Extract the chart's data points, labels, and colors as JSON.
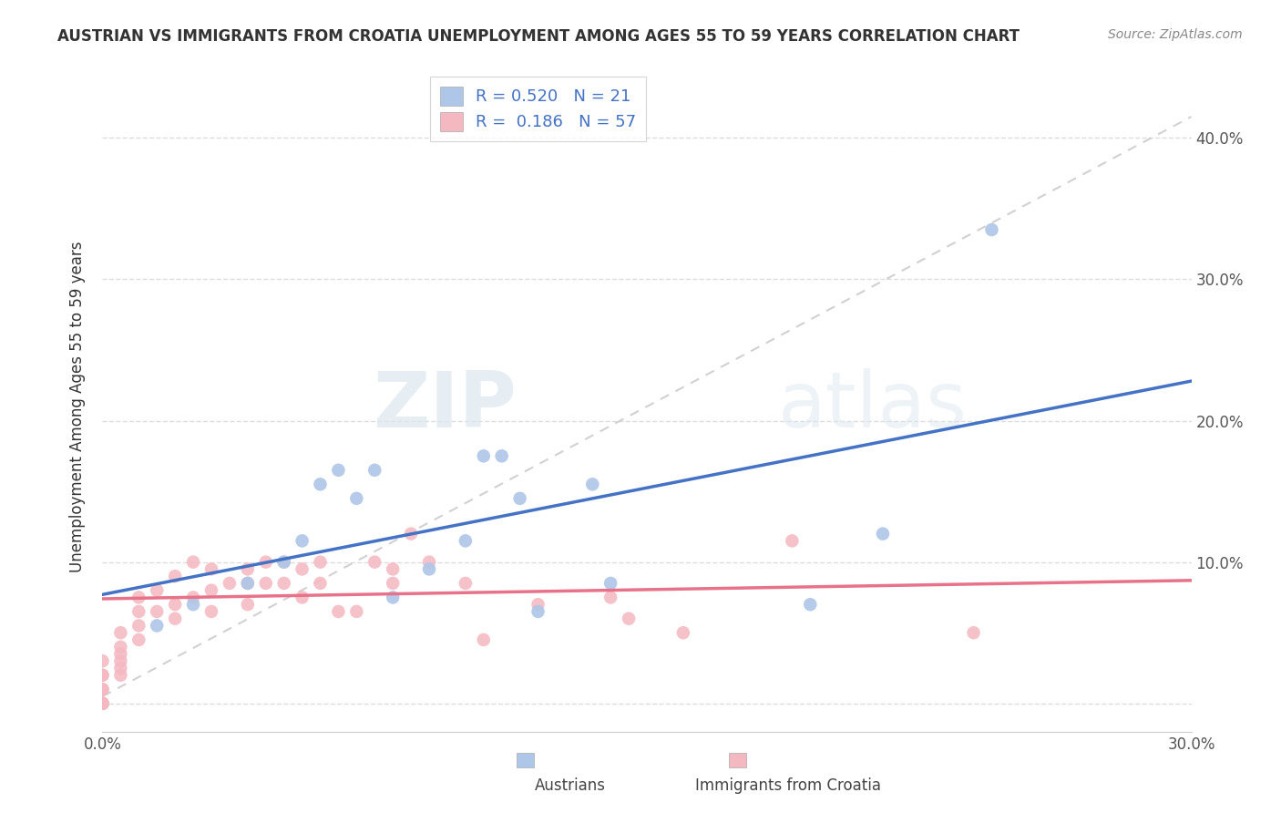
{
  "title": "AUSTRIAN VS IMMIGRANTS FROM CROATIA UNEMPLOYMENT AMONG AGES 55 TO 59 YEARS CORRELATION CHART",
  "source": "Source: ZipAtlas.com",
  "ylabel": "Unemployment Among Ages 55 to 59 years",
  "xlim": [
    0.0,
    0.3
  ],
  "ylim": [
    -0.02,
    0.44
  ],
  "R_austrians": 0.52,
  "N_austrians": 21,
  "R_croatia": 0.186,
  "N_croatia": 57,
  "color_austrians": "#aec6e8",
  "color_croatia": "#f4b8c1",
  "color_trend_austrians": "#4472c4",
  "color_trend_croatia": "#e8728a",
  "color_trend_dashed": "#cccccc",
  "background_color": "#ffffff",
  "grid_color": "#dddddd",
  "austrians_x": [
    0.015,
    0.025,
    0.04,
    0.05,
    0.055,
    0.06,
    0.065,
    0.07,
    0.075,
    0.08,
    0.09,
    0.1,
    0.105,
    0.11,
    0.115,
    0.12,
    0.135,
    0.14,
    0.195,
    0.215,
    0.245
  ],
  "austrians_y": [
    0.055,
    0.07,
    0.085,
    0.1,
    0.115,
    0.155,
    0.165,
    0.145,
    0.165,
    0.075,
    0.095,
    0.115,
    0.175,
    0.175,
    0.145,
    0.065,
    0.155,
    0.085,
    0.07,
    0.12,
    0.335
  ],
  "croatia_x": [
    0.0,
    0.0,
    0.0,
    0.0,
    0.0,
    0.0,
    0.0,
    0.0,
    0.0,
    0.0,
    0.005,
    0.005,
    0.005,
    0.005,
    0.005,
    0.005,
    0.01,
    0.01,
    0.01,
    0.01,
    0.015,
    0.015,
    0.02,
    0.02,
    0.02,
    0.025,
    0.025,
    0.03,
    0.03,
    0.03,
    0.035,
    0.04,
    0.04,
    0.04,
    0.045,
    0.045,
    0.05,
    0.05,
    0.055,
    0.055,
    0.06,
    0.06,
    0.065,
    0.07,
    0.075,
    0.08,
    0.08,
    0.085,
    0.09,
    0.1,
    0.105,
    0.12,
    0.14,
    0.145,
    0.16,
    0.19,
    0.24
  ],
  "croatia_y": [
    0.0,
    0.0,
    0.0,
    0.0,
    0.0,
    0.01,
    0.01,
    0.02,
    0.02,
    0.03,
    0.02,
    0.025,
    0.03,
    0.035,
    0.04,
    0.05,
    0.045,
    0.055,
    0.065,
    0.075,
    0.065,
    0.08,
    0.06,
    0.07,
    0.09,
    0.075,
    0.1,
    0.065,
    0.08,
    0.095,
    0.085,
    0.07,
    0.085,
    0.095,
    0.085,
    0.1,
    0.085,
    0.1,
    0.075,
    0.095,
    0.085,
    0.1,
    0.065,
    0.065,
    0.1,
    0.085,
    0.095,
    0.12,
    0.1,
    0.085,
    0.045,
    0.07,
    0.075,
    0.06,
    0.05,
    0.115,
    0.05
  ],
  "trend_austrians_x0": 0.0,
  "trend_austrians_y0": 0.077,
  "trend_austrians_x1": 0.3,
  "trend_austrians_y1": 0.228,
  "trend_croatia_x0": 0.0,
  "trend_croatia_y0": 0.074,
  "trend_croatia_x1": 0.3,
  "trend_croatia_y1": 0.087,
  "trend_dashed_x0": 0.0,
  "trend_dashed_y0": 0.005,
  "trend_dashed_x1": 0.3,
  "trend_dashed_y1": 0.415
}
